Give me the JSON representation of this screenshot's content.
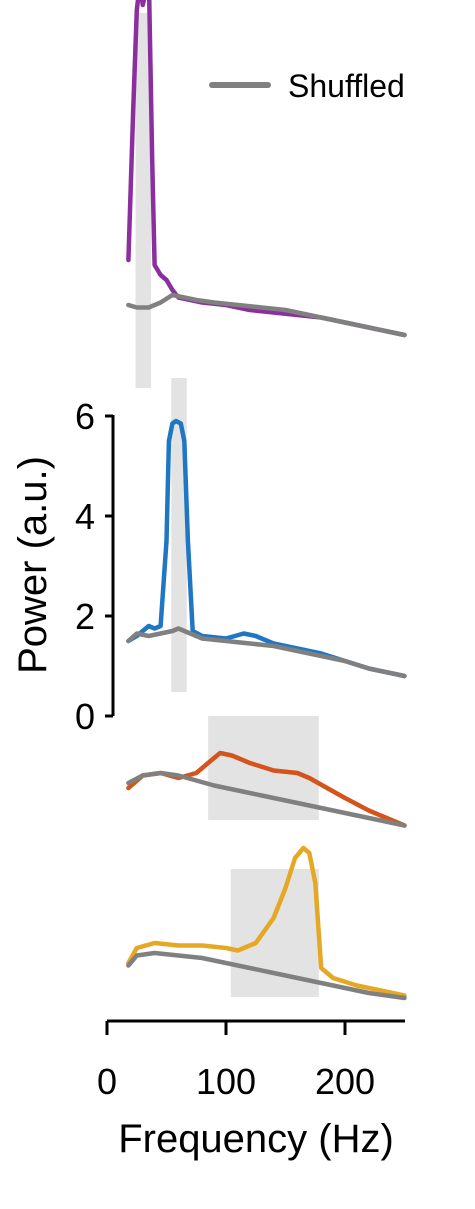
{
  "chart_data": {
    "type": "line",
    "xlabel": "Frequency (Hz)",
    "ylabel": "Power (a.u.)",
    "xlim": [
      0,
      250
    ],
    "x_ticks": [
      0,
      100,
      200
    ],
    "y_ticks": [
      0,
      2,
      4,
      6
    ],
    "ylim": [
      0,
      6.2
    ],
    "legend": {
      "label": "Shuffled",
      "color": "#808080",
      "position": "top-right"
    },
    "grid": false,
    "panels": [
      {
        "color": "#8B2FA0",
        "band_hz": [
          24,
          37
        ],
        "series": {
          "x": [
            18,
            22,
            25,
            28,
            30,
            32,
            35,
            38,
            40,
            45,
            50,
            55,
            60,
            70,
            80,
            100,
            120,
            140,
            160,
            180,
            200,
            220,
            250
          ],
          "y": [
            2.0,
            5.0,
            7.0,
            7.6,
            7.1,
            7.3,
            7.8,
            4.0,
            1.9,
            1.7,
            1.6,
            1.4,
            1.25,
            1.2,
            1.15,
            1.1,
            1.0,
            0.95,
            0.9,
            0.85,
            0.75,
            0.65,
            0.5
          ]
        },
        "shuffled": {
          "x": [
            18,
            25,
            35,
            45,
            55,
            65,
            75,
            90,
            110,
            130,
            150,
            170,
            190,
            210,
            230,
            250
          ],
          "y": [
            1.1,
            1.05,
            1.05,
            1.15,
            1.3,
            1.25,
            1.2,
            1.15,
            1.1,
            1.05,
            1.0,
            0.9,
            0.8,
            0.7,
            0.6,
            0.5
          ]
        }
      },
      {
        "color": "#1F77C4",
        "band_hz": [
          54,
          67
        ],
        "series": {
          "x": [
            18,
            25,
            30,
            35,
            40,
            45,
            50,
            52,
            55,
            58,
            62,
            65,
            68,
            72,
            80,
            100,
            115,
            125,
            140,
            160,
            180,
            200,
            220,
            250
          ],
          "y": [
            1.5,
            1.6,
            1.7,
            1.8,
            1.75,
            1.8,
            3.5,
            5.5,
            5.85,
            5.9,
            5.85,
            5.5,
            3.5,
            1.7,
            1.6,
            1.55,
            1.65,
            1.6,
            1.45,
            1.35,
            1.25,
            1.1,
            0.95,
            0.8
          ]
        },
        "shuffled": {
          "x": [
            18,
            25,
            35,
            45,
            55,
            60,
            70,
            80,
            100,
            120,
            140,
            160,
            180,
            200,
            220,
            250
          ],
          "y": [
            1.5,
            1.65,
            1.6,
            1.65,
            1.7,
            1.75,
            1.65,
            1.55,
            1.5,
            1.45,
            1.4,
            1.3,
            1.2,
            1.1,
            0.95,
            0.8
          ]
        }
      },
      {
        "color": "#D4541C",
        "band_hz": [
          85,
          178
        ],
        "series": {
          "x": [
            18,
            30,
            45,
            60,
            75,
            85,
            95,
            105,
            120,
            140,
            160,
            170,
            185,
            200,
            220,
            250
          ],
          "y": [
            1.0,
            1.25,
            1.3,
            1.2,
            1.3,
            1.5,
            1.7,
            1.65,
            1.5,
            1.35,
            1.3,
            1.2,
            1.0,
            0.8,
            0.55,
            0.25
          ]
        },
        "shuffled": {
          "x": [
            18,
            30,
            45,
            60,
            75,
            90,
            110,
            130,
            150,
            170,
            190,
            210,
            230,
            250
          ],
          "y": [
            1.1,
            1.25,
            1.3,
            1.25,
            1.15,
            1.05,
            0.95,
            0.85,
            0.75,
            0.65,
            0.55,
            0.45,
            0.35,
            0.25
          ]
        }
      },
      {
        "color": "#E5A824",
        "band_hz": [
          104,
          178
        ],
        "series": {
          "x": [
            18,
            25,
            40,
            60,
            80,
            100,
            110,
            125,
            140,
            150,
            158,
            165,
            170,
            175,
            180,
            190,
            210,
            230,
            250
          ],
          "y": [
            0.9,
            1.2,
            1.3,
            1.25,
            1.25,
            1.2,
            1.15,
            1.3,
            1.8,
            2.4,
            3.0,
            3.2,
            3.1,
            2.5,
            0.8,
            0.6,
            0.45,
            0.35,
            0.25
          ]
        },
        "shuffled": {
          "x": [
            18,
            25,
            40,
            60,
            80,
            100,
            120,
            140,
            160,
            180,
            200,
            220,
            250
          ],
          "y": [
            0.85,
            1.05,
            1.1,
            1.05,
            1.0,
            0.9,
            0.8,
            0.7,
            0.6,
            0.5,
            0.4,
            0.3,
            0.2
          ]
        }
      }
    ]
  }
}
